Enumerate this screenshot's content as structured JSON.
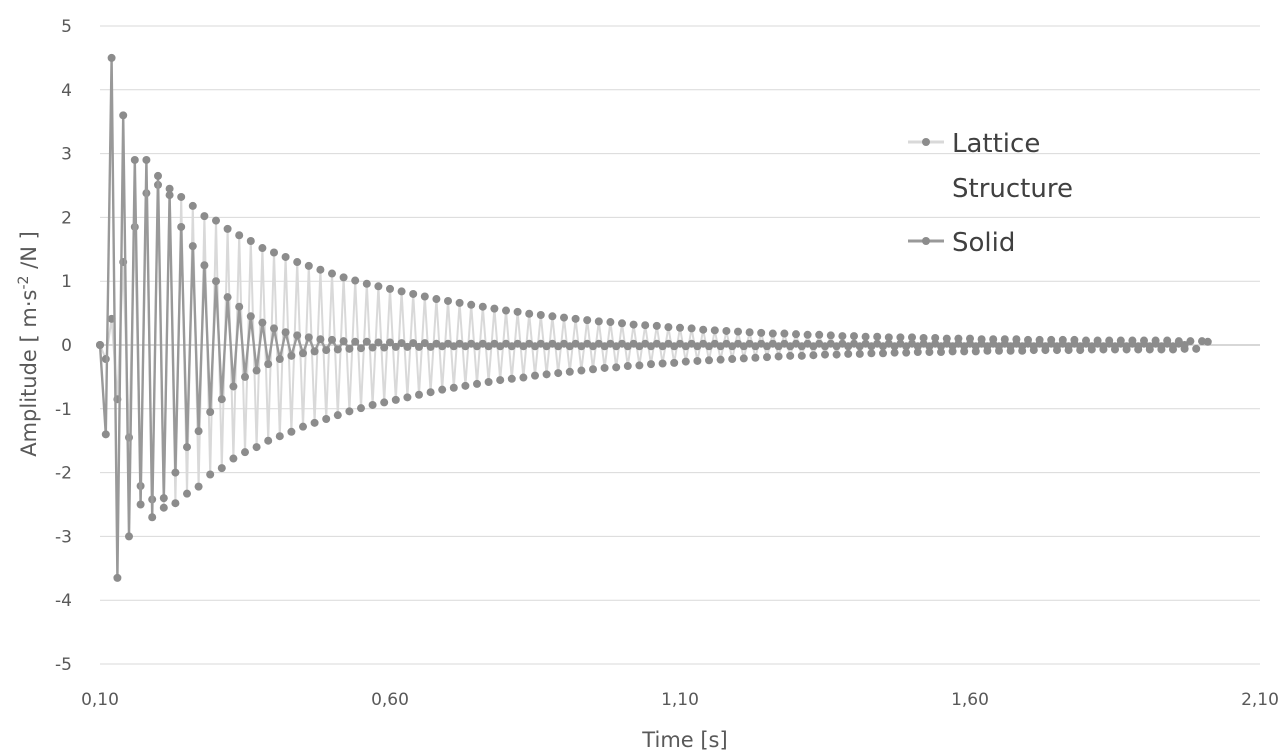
{
  "chart_data": {
    "type": "line",
    "title": "",
    "xlabel": "Time [s]",
    "ylabel": "Amplitude [ m·s-2 /N ]",
    "ylabel_parts": {
      "before": "Amplitude [ m·s",
      "sup": "-2",
      "after": " /N ]"
    },
    "xlim": [
      0.1,
      2.1
    ],
    "ylim": [
      -5,
      5
    ],
    "x_ticks": [
      0.1,
      0.6,
      1.1,
      1.6,
      2.1
    ],
    "x_tick_labels": [
      "0,10",
      "0,60",
      "1,10",
      "1,60",
      "2,10"
    ],
    "y_ticks": [
      -5,
      -4,
      -3,
      -2,
      -1,
      0,
      1,
      2,
      3,
      4,
      5
    ],
    "y_tick_labels": [
      "-5",
      "-4",
      "-3",
      "-2",
      "-1",
      "0",
      "1",
      "2",
      "3",
      "4",
      "5"
    ],
    "grid": "horizontal",
    "legend_position": "top-right",
    "series": [
      {
        "name": "Lattice Structure",
        "color": "#d9d9d9",
        "marker_color": "#8c8c8c",
        "x_start": 0.1,
        "x_step": 0.01,
        "count": 192,
        "values": [
          0.0,
          -0.22,
          0.41,
          -0.85,
          1.3,
          -1.45,
          1.85,
          -2.21,
          2.38,
          -2.42,
          2.51,
          -2.55,
          2.45,
          -2.48,
          2.32,
          -2.33,
          2.18,
          -2.22,
          2.02,
          -2.03,
          1.95,
          -1.93,
          1.82,
          -1.78,
          1.72,
          -1.68,
          1.63,
          -1.6,
          1.52,
          -1.5,
          1.45,
          -1.43,
          1.38,
          -1.36,
          1.3,
          -1.28,
          1.24,
          -1.22,
          1.18,
          -1.16,
          1.12,
          -1.1,
          1.06,
          -1.04,
          1.01,
          -0.99,
          0.96,
          -0.94,
          0.92,
          -0.9,
          0.88,
          -0.86,
          0.84,
          -0.82,
          0.8,
          -0.78,
          0.76,
          -0.74,
          0.72,
          -0.7,
          0.69,
          -0.67,
          0.66,
          -0.64,
          0.63,
          -0.61,
          0.6,
          -0.58,
          0.57,
          -0.55,
          0.54,
          -0.53,
          0.52,
          -0.51,
          0.49,
          -0.48,
          0.47,
          -0.46,
          0.45,
          -0.44,
          0.43,
          -0.42,
          0.41,
          -0.4,
          0.39,
          -0.38,
          0.37,
          -0.36,
          0.36,
          -0.35,
          0.34,
          -0.33,
          0.32,
          -0.32,
          0.31,
          -0.3,
          0.3,
          -0.29,
          0.28,
          -0.28,
          0.27,
          -0.26,
          0.26,
          -0.25,
          0.24,
          -0.24,
          0.23,
          -0.23,
          0.22,
          -0.22,
          0.21,
          -0.21,
          0.2,
          -0.2,
          0.19,
          -0.19,
          0.18,
          -0.18,
          0.18,
          -0.17,
          0.17,
          -0.17,
          0.16,
          -0.16,
          0.16,
          -0.15,
          0.15,
          -0.15,
          0.14,
          -0.14,
          0.14,
          -0.14,
          0.13,
          -0.13,
          0.13,
          -0.13,
          0.12,
          -0.12,
          0.12,
          -0.12,
          0.12,
          -0.11,
          0.11,
          -0.11,
          0.11,
          -0.11,
          0.1,
          -0.1,
          0.1,
          -0.1,
          0.1,
          -0.1,
          0.09,
          -0.09,
          0.09,
          -0.09,
          0.09,
          -0.09,
          0.09,
          -0.09,
          0.08,
          -0.08,
          0.08,
          -0.08,
          0.08,
          -0.08,
          0.08,
          -0.08,
          0.08,
          -0.08,
          0.07,
          -0.07,
          0.07,
          -0.07,
          0.07,
          -0.07,
          0.07,
          -0.07,
          0.07,
          -0.07,
          0.07,
          -0.07,
          0.07,
          -0.07,
          0.07,
          -0.07,
          0.06,
          -0.06,
          0.06,
          -0.06,
          0.06,
          0.05
        ]
      },
      {
        "name": "Solid",
        "color": "#999999",
        "marker_color": "#8c8c8c",
        "x_start": 0.1,
        "x_step": 0.01,
        "count": 192,
        "values": [
          0.0,
          -1.4,
          4.5,
          -3.65,
          3.6,
          -3.0,
          2.9,
          -2.5,
          2.9,
          -2.7,
          2.65,
          -2.4,
          2.35,
          -2.0,
          1.85,
          -1.6,
          1.55,
          -1.35,
          1.25,
          -1.05,
          1.0,
          -0.85,
          0.75,
          -0.65,
          0.6,
          -0.5,
          0.45,
          -0.4,
          0.35,
          -0.3,
          0.26,
          -0.22,
          0.2,
          -0.17,
          0.15,
          -0.13,
          0.12,
          -0.1,
          0.09,
          -0.08,
          0.08,
          -0.07,
          0.06,
          -0.06,
          0.05,
          -0.05,
          0.05,
          -0.04,
          0.04,
          -0.04,
          0.04,
          -0.03,
          0.03,
          -0.03,
          0.03,
          -0.03,
          0.03,
          -0.03,
          0.02,
          -0.02,
          0.02,
          -0.02,
          0.02,
          -0.02,
          0.02,
          -0.02,
          0.02,
          -0.02,
          0.02,
          -0.02,
          0.02,
          -0.02,
          0.02,
          -0.02,
          0.02,
          -0.02,
          0.02,
          -0.02,
          0.02,
          -0.02,
          0.02,
          -0.02,
          0.02,
          -0.02,
          0.02,
          -0.02,
          0.02,
          -0.02,
          0.02,
          -0.02,
          0.02,
          -0.02,
          0.02,
          -0.02,
          0.02,
          -0.02,
          0.02,
          -0.02,
          0.02,
          -0.02,
          0.02,
          -0.02,
          0.02,
          -0.02,
          0.02,
          -0.02,
          0.02,
          -0.02,
          0.02,
          -0.02,
          0.02,
          -0.02,
          0.02,
          -0.02,
          0.02,
          -0.02,
          0.02,
          -0.02,
          0.02,
          -0.02,
          0.02,
          -0.02,
          0.02,
          -0.02,
          0.02,
          -0.02,
          0.02,
          -0.02,
          0.02,
          -0.02,
          0.02,
          -0.02,
          0.02,
          -0.02,
          0.02,
          -0.02,
          0.02,
          -0.02,
          0.02,
          -0.02,
          0.02,
          -0.02,
          0.02,
          -0.02,
          0.02,
          -0.02,
          0.02,
          -0.02,
          0.02,
          -0.02,
          0.02,
          -0.02,
          0.02,
          -0.02,
          0.02,
          -0.02,
          0.02,
          -0.02,
          0.02,
          -0.02,
          0.02,
          -0.02,
          0.02,
          -0.02,
          0.02,
          -0.02,
          0.02,
          -0.02,
          0.02,
          -0.02,
          0.02,
          -0.02,
          0.02,
          -0.02,
          0.02,
          -0.02,
          0.02,
          -0.02,
          0.02,
          -0.02,
          0.02,
          -0.02,
          0.02,
          -0.02,
          0.02,
          -0.02,
          0.02,
          0.0
        ]
      }
    ]
  }
}
